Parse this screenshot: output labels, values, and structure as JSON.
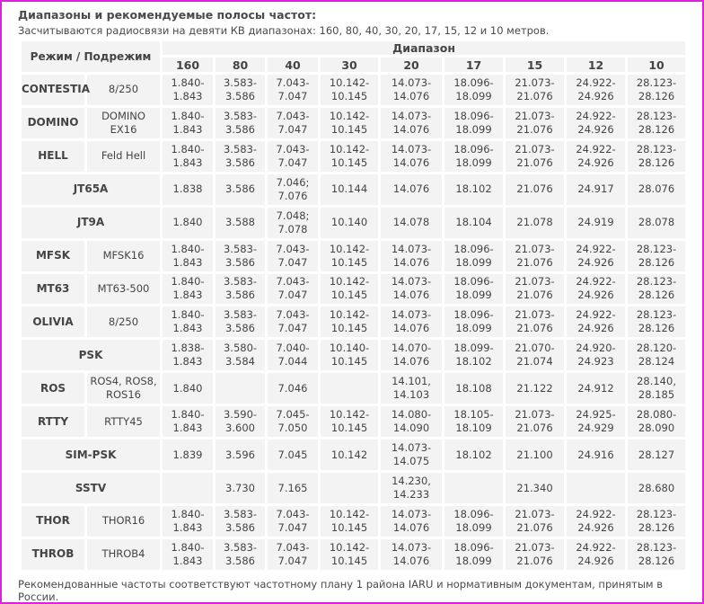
{
  "title": "Диапазоны и рекомендуемые полосы частот:",
  "subtitle": "Засчитываются радиосвязи на девяти КВ диапазонах: 160, 80, 40, 30, 20, 17, 15, 12 и 10 метров.",
  "table": {
    "mode_header": "Режим / Подрежим",
    "band_header": "Диапазон",
    "bands": [
      "160",
      "80",
      "40",
      "30",
      "20",
      "17",
      "15",
      "12",
      "10"
    ],
    "rows": [
      {
        "mode": "CONTESTIA",
        "submode": "8/250",
        "values": [
          "1.840-\n1.843",
          "3.583-\n3.586",
          "7.043-\n7.047",
          "10.142-\n10.145",
          "14.073-\n14.076",
          "18.096-\n18.099",
          "21.073-\n21.076",
          "24.922-\n24.926",
          "28.123-\n28.126"
        ]
      },
      {
        "mode": "DOMINO",
        "submode": "DOMINO EX16",
        "values": [
          "1.840-\n1.843",
          "3.583-\n3.586",
          "7.043-\n7.047",
          "10.142-\n10.145",
          "14.073-\n14.076",
          "18.096-\n18.099",
          "21.073-\n21.076",
          "24.922-\n24.926",
          "28.123-\n28.126"
        ]
      },
      {
        "mode": "HELL",
        "submode": "Feld Hell",
        "values": [
          "1.840-\n1.843",
          "3.583-\n3.586",
          "7.043-\n7.047",
          "10.142-\n10.145",
          "14.073-\n14.076",
          "18.096-\n18.099",
          "21.073-\n21.076",
          "24.922-\n24.926",
          "28.123-\n28.126"
        ]
      },
      {
        "mode": "JT65A",
        "submode": "",
        "values": [
          "1.838",
          "3.586",
          "7.046;\n7.076",
          "10.144",
          "14.076",
          "18.102",
          "21.076",
          "24.917",
          "28.076"
        ]
      },
      {
        "mode": "JT9A",
        "submode": "",
        "values": [
          "1.840",
          "3.588",
          "7.048;\n7.078",
          "10.140",
          "14.078",
          "18.104",
          "21.078",
          "24.919",
          "28.078"
        ]
      },
      {
        "mode": "MFSK",
        "submode": "MFSK16",
        "values": [
          "1.840-\n1.843",
          "3.583-\n3.586",
          "7.043-\n7.047",
          "10.142-\n10.145",
          "14.073-\n14.076",
          "18.096-\n18.099",
          "21.073-\n21.076",
          "24.922-\n24.926",
          "28.123-\n28.126"
        ]
      },
      {
        "mode": "MT63",
        "submode": "MT63-500",
        "values": [
          "1.840-\n1.843",
          "3.583-\n3.586",
          "7.043-\n7.047",
          "10.142-\n10.145",
          "14.073-\n14.076",
          "18.096-\n18.099",
          "21.073-\n21.076",
          "24.922-\n24.926",
          "28.123-\n28.126"
        ]
      },
      {
        "mode": "OLIVIA",
        "submode": "8/250",
        "values": [
          "1.840-\n1.843",
          "3.583-\n3.586",
          "7.043-\n7.047",
          "10.142-\n10.145",
          "14.073-\n14.076",
          "18.096-\n18.099",
          "21.073-\n21.076",
          "24.922-\n24.926",
          "28.123-\n28.126"
        ]
      },
      {
        "mode": "PSK",
        "submode": "",
        "values": [
          "1.838-\n1.843",
          "3.580-\n3.584",
          "7.040-\n7.044",
          "10.140-\n10.145",
          "14.070-\n14.076",
          "18.099-\n18.102",
          "21.070-\n21.074",
          "24.920-\n24.923",
          "28.120-\n28.124"
        ]
      },
      {
        "mode": "ROS",
        "submode": "ROS4, ROS8,\nROS16",
        "values": [
          "1.840",
          "",
          "7.046",
          "",
          "14.101,\n14.103",
          "18.108",
          "21.122",
          "24.912",
          "28.140,\n28.185"
        ]
      },
      {
        "mode": "RTTY",
        "submode": "RTTY45",
        "values": [
          "1.840-\n1.843",
          "3.590-\n3.600",
          "7.045-\n7.050",
          "10.142-\n10.145",
          "14.080-\n14.090",
          "18.105-\n18.109",
          "21.073-\n21.076",
          "24.925-\n24.929",
          "28.080-\n28.090"
        ]
      },
      {
        "mode": "SIM-PSK",
        "submode": "",
        "values": [
          "1.839",
          "3.596",
          "7.045",
          "10.142",
          "14.073-\n14.075",
          "18.102",
          "21.100",
          "24.916",
          "28.127"
        ]
      },
      {
        "mode": "SSTV",
        "submode": "",
        "values": [
          "",
          "3.730",
          "7.165",
          "",
          "14.230,\n14.233",
          "",
          "21.340",
          "",
          "28.680"
        ]
      },
      {
        "mode": "THOR",
        "submode": "THOR16",
        "values": [
          "1.840-\n1.843",
          "3.583-\n3.586",
          "7.043-\n7.047",
          "10.142-\n10.145",
          "14.073-\n14.076",
          "18.096-\n18.099",
          "21.073-\n21.076",
          "24.922-\n24.926",
          "28.123-\n28.126"
        ]
      },
      {
        "mode": "THROB",
        "submode": "THROB4",
        "values": [
          "1.840-\n1.843",
          "3.583-\n3.586",
          "7.043-\n7.047",
          "10.142-\n10.145",
          "14.073-\n14.076",
          "18.096-\n18.099",
          "21.073-\n21.076",
          "24.922-\n24.926",
          "28.123-\n28.126"
        ]
      }
    ]
  },
  "footer": "Рекомендованные частоты соответствуют частотному плану 1 района IARU и нормативным документам, принятым в России.",
  "colors": {
    "frame_border": "#e020e0",
    "cell_background": "#f3f3f3",
    "text": "#444444"
  }
}
